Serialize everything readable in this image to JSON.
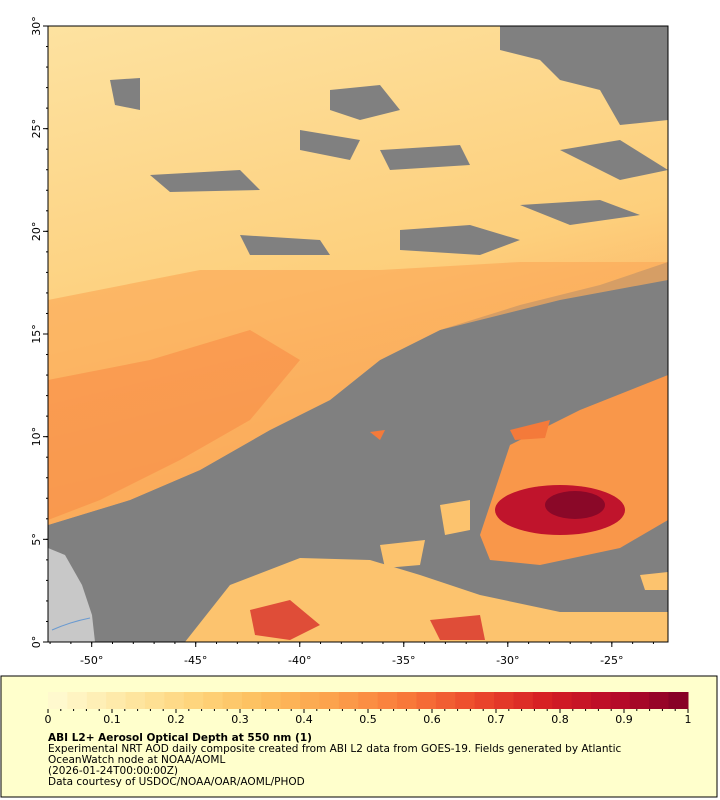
{
  "map": {
    "xlim": [
      -52.1,
      -22.3
    ],
    "ylim": [
      0,
      30
    ],
    "lon_ticks": [
      {
        "value": -50,
        "label": "-50°"
      },
      {
        "value": -45,
        "label": "-45°"
      },
      {
        "value": -40,
        "label": "-40°"
      },
      {
        "value": -35,
        "label": "-35°"
      },
      {
        "value": -30,
        "label": "-30°"
      },
      {
        "value": -25,
        "label": "-25°"
      }
    ],
    "lat_ticks": [
      {
        "value": 0,
        "label": "0°"
      },
      {
        "value": 5,
        "label": "5°"
      },
      {
        "value": 10,
        "label": "10°"
      },
      {
        "value": 15,
        "label": "15°"
      },
      {
        "value": 20,
        "label": "20°"
      },
      {
        "value": 25,
        "label": "25°"
      },
      {
        "value": 30,
        "label": "30°"
      }
    ]
  },
  "colorbar": {
    "range": [
      0,
      1
    ],
    "ticks": [
      0,
      0.1,
      0.2,
      0.3,
      0.4,
      0.5,
      0.6,
      0.7,
      0.8,
      0.9,
      1
    ],
    "colors": [
      "#fffbd4",
      "#fee9a8",
      "#fed67e",
      "#fdbf5e",
      "#fca24c",
      "#f97a3a",
      "#ec4a2c",
      "#d61f24",
      "#b80a28",
      "#800026"
    ]
  },
  "legend": {
    "title": "ABI L2+ Aerosol Optical Depth at 550 nm (1)",
    "description": "Experimental NRT AOD daily composite created from ABI L2 data from GOES-19. Fields generated by Atlantic OceanWatch node at NOAA/AOML",
    "date": "(2026-01-24T00:00:00Z)",
    "credit": "Data courtesy of USDOC/NOAA/OAR/AOML/PHOD"
  }
}
